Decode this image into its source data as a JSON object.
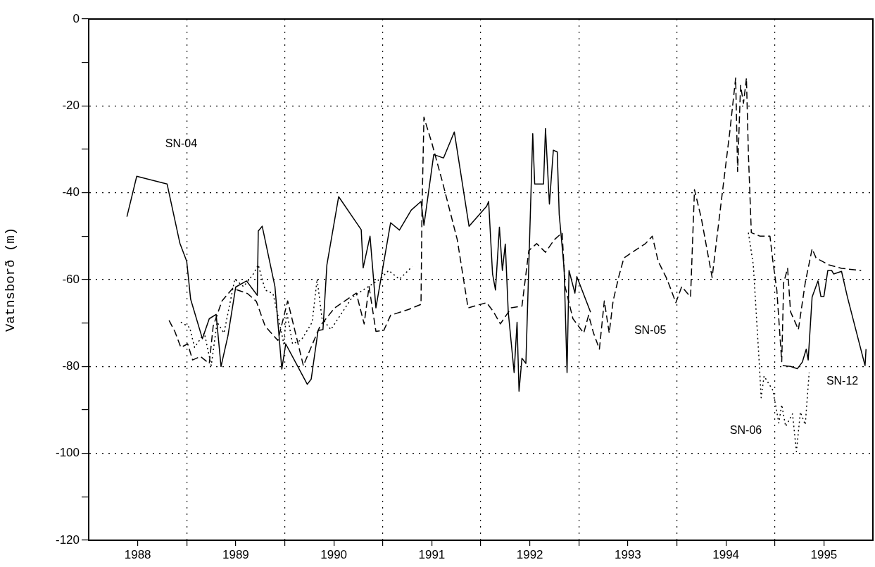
{
  "chart_data": {
    "type": "line",
    "ylabel": "Vatnsborð (m)",
    "xlim": [
      1988,
      1996
    ],
    "ylim": [
      -120,
      0
    ],
    "xticks": [
      {
        "value": 1988.5,
        "label": "1988"
      },
      {
        "value": 1989,
        "label": null
      },
      {
        "value": 1989.5,
        "label": "1989"
      },
      {
        "value": 1990,
        "label": null
      },
      {
        "value": 1990.5,
        "label": "1990"
      },
      {
        "value": 1991,
        "label": null
      },
      {
        "value": 1991.5,
        "label": "1991"
      },
      {
        "value": 1992,
        "label": null
      },
      {
        "value": 1992.5,
        "label": "1992"
      },
      {
        "value": 1993,
        "label": null
      },
      {
        "value": 1993.5,
        "label": "1993"
      },
      {
        "value": 1994,
        "label": null
      },
      {
        "value": 1994.5,
        "label": "1994"
      },
      {
        "value": 1995,
        "label": null
      },
      {
        "value": 1995.5,
        "label": "1995"
      }
    ],
    "yticks": [
      -120,
      {
        "value": -110,
        "label": null
      },
      -100,
      {
        "value": -90,
        "label": null
      },
      -80,
      {
        "value": -70,
        "label": null
      },
      -60,
      {
        "value": -50,
        "label": null
      },
      -40,
      {
        "value": -30,
        "label": null
      },
      -20,
      {
        "value": -10,
        "label": null
      },
      0
    ],
    "grid": true,
    "legend": false,
    "marker": "none",
    "series": [
      {
        "name": "SN-04",
        "color": "#000000",
        "line_style": "solid",
        "x": [
          1988.39,
          1988.49,
          1988.8,
          1988.93,
          1989.0,
          1989.04,
          1989.16,
          1989.23,
          1989.3,
          1989.35,
          1989.42,
          1989.5,
          1989.61,
          1989.72,
          1989.73,
          1989.77,
          1989.9,
          1989.97,
          1990.01,
          1990.23,
          1990.27,
          1990.34,
          1990.39,
          1990.43,
          1990.55,
          1990.78,
          1990.8,
          1990.87,
          1990.93,
          1991.08,
          1991.17,
          1991.29,
          1991.39,
          1991.42,
          1991.52,
          1991.62,
          1991.73,
          1991.88,
          1992.06,
          1992.08,
          1992.12,
          1992.15,
          1992.19,
          1992.22,
          1992.25,
          1992.28,
          1992.34,
          1992.37,
          1992.39,
          1992.42,
          1992.46,
          1992.53,
          1992.55,
          1992.64,
          1992.66,
          1992.7,
          1992.74,
          1992.78,
          1992.8,
          1992.85,
          1992.88,
          1992.9,
          1992.96,
          1992.98,
          1993.12
        ],
        "values": [
          -45.5,
          -36.2,
          -38,
          -51.6,
          -55.8,
          -64.5,
          -73.6,
          -69,
          -68,
          -80,
          -73,
          -61.7,
          -60.3,
          -63.6,
          -48.8,
          -47.7,
          -61.6,
          -80.6,
          -74.8,
          -84.1,
          -82.9,
          -71.7,
          -71.5,
          -56.6,
          -40.9,
          -48.5,
          -57.3,
          -50,
          -66.5,
          -46.9,
          -48.6,
          -44,
          -42,
          -47.5,
          -31.2,
          -32,
          -26,
          -47.7,
          -43.1,
          -42,
          -58.7,
          -62.4,
          -47.9,
          -57.9,
          -51.8,
          -67.4,
          -81.4,
          -69.8,
          -85.7,
          -78.1,
          -79.3,
          -26.4,
          -38,
          -38,
          -25.2,
          -42.6,
          -30.2,
          -30.6,
          -45,
          -57.4,
          -81.4,
          -57.9,
          -63.1,
          -59.3,
          -67.5
        ]
      },
      {
        "name": "SN-05",
        "color": "#000000",
        "line_style": "dashed",
        "x": [
          1988.82,
          1988.88,
          1988.94,
          1989.01,
          1989.06,
          1989.14,
          1989.23,
          1989.27,
          1989.36,
          1989.47,
          1989.62,
          1989.71,
          1989.8,
          1989.93,
          1990.03,
          1990.19,
          1990.36,
          1990.51,
          1990.73,
          1990.81,
          1990.86,
          1990.93,
          1991.01,
          1991.08,
          1991.26,
          1991.39,
          1991.4,
          1991.42,
          1991.5,
          1991.61,
          1991.76,
          1991.87,
          1992.06,
          1992.13,
          1992.2,
          1992.31,
          1992.42,
          1992.49,
          1992.57,
          1992.66,
          1992.75,
          1992.83,
          1992.86,
          1992.94,
          1993.05,
          1993.1,
          1993.15,
          1993.21,
          1993.26,
          1993.31,
          1993.35,
          1993.41,
          1993.46,
          1993.68,
          1993.75,
          1993.81,
          1993.9,
          1993.99,
          1994.05,
          1994.14,
          1994.18,
          1994.25,
          1994.36,
          1994.45,
          1994.54,
          1994.6,
          1994.62,
          1994.65,
          1994.68,
          1994.71,
          1994.73,
          1994.76,
          1994.85,
          1994.95,
          1994.98,
          1995.02,
          1995.07,
          1995.09,
          1995.13,
          1995.16,
          1995.24,
          1995.31,
          1995.38,
          1995.42,
          1995.55,
          1995.68,
          1995.88
        ],
        "values": [
          -69.4,
          -72,
          -75.6,
          -74.8,
          -78.5,
          -77.7,
          -79.3,
          -70.7,
          -64.9,
          -62,
          -63.2,
          -65,
          -70.7,
          -74,
          -64.9,
          -79.8,
          -70.7,
          -66.5,
          -63.1,
          -70.2,
          -61.6,
          -71.9,
          -71.7,
          -68.2,
          -66.9,
          -65.7,
          -44.2,
          -22.6,
          -28.5,
          -37.6,
          -50.8,
          -66.5,
          -65.3,
          -67.4,
          -70.2,
          -66.5,
          -66.1,
          -53.3,
          -51.7,
          -53.7,
          -50.8,
          -49.2,
          -61.6,
          -69,
          -72.3,
          -68.2,
          -72.3,
          -76,
          -64.9,
          -72.3,
          -64.9,
          -59.1,
          -55,
          -51.7,
          -50,
          -55.8,
          -59.9,
          -65.3,
          -61.6,
          -64,
          -39.3,
          -45.9,
          -59.5,
          -42.6,
          -26,
          -13.6,
          -35.1,
          -15.3,
          -19.4,
          -13.6,
          -31,
          -49.2,
          -50,
          -50,
          -55.8,
          -62.4,
          -78.9,
          -60.7,
          -57.4,
          -67.4,
          -71.5,
          -60.7,
          -52.9,
          -55,
          -56.6,
          -57.4,
          -57.9
        ]
      },
      {
        "name": "SN-06",
        "color": "#000000",
        "line_style": "dotted",
        "x": [
          1988.94,
          1989.03,
          1989.08,
          1989.18,
          1989.25,
          1989.31,
          1989.38,
          1989.49,
          1989.58,
          1989.68,
          1989.73,
          1989.8,
          1989.88,
          1989.93,
          1989.99,
          1990.02,
          1990.08,
          1990.17,
          1990.28,
          1990.33,
          1990.38,
          1990.47,
          1990.69,
          1990.97,
          1991.06,
          1991.17,
          1991.3,
          1993,
          1994.73,
          1994.78,
          1994.84,
          1994.86,
          1994.89,
          1994.98,
          1995.04,
          1995.07,
          1995.11,
          1995.18,
          1995.22,
          1995.26,
          1995.31,
          1995.35
        ],
        "values": [
          -69.8,
          -71,
          -75.6,
          -72.3,
          -79.8,
          -69.8,
          -72.3,
          -59.9,
          -61.6,
          -58.7,
          -56.6,
          -62.4,
          -63.2,
          -68.2,
          -74.8,
          -67.4,
          -74.8,
          -73.9,
          -69.8,
          -59.9,
          -68.9,
          -71.5,
          -64,
          -59.9,
          -57.9,
          -59.9,
          -57,
          null,
          -49.2,
          -56.6,
          -78.9,
          -87.2,
          -82.2,
          -85.5,
          -93,
          -88.8,
          -93.8,
          -90.9,
          -99.6,
          -90.5,
          -93.4,
          -81.4
        ]
      },
      {
        "name": "SN-12",
        "color": "#000000",
        "line_style": "solid",
        "x": [
          1995.08,
          1995.16,
          1995.23,
          1995.28,
          1995.32,
          1995.34,
          1995.38,
          1995.44,
          1995.47,
          1995.5,
          1995.54,
          1995.58,
          1995.6,
          1995.68,
          1995.74,
          1995.92,
          1995.93
        ],
        "values": [
          -79.8,
          -80,
          -80.5,
          -79,
          -76,
          -78.5,
          -64,
          -60.3,
          -63.9,
          -63.9,
          -57.9,
          -57.9,
          -58.7,
          -58.1,
          -64,
          -79.8,
          -76
        ]
      }
    ]
  }
}
